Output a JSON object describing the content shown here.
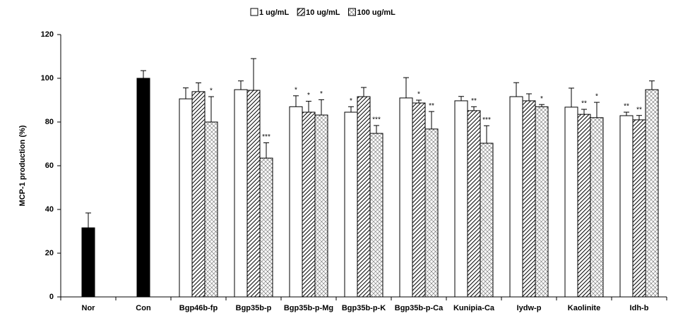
{
  "chart_data": {
    "type": "bar",
    "y_label": "MCP-1 production (%)",
    "categories": [
      "Nor",
      "Con",
      "Bgp46b-fp",
      "Bgp35b-p",
      "Bgp35b-p-Mg",
      "Bgp35b-p-K",
      "Bgp35b-p-Ca",
      "Kunipia-Ca",
      "Iydw-p",
      "Kaolinite",
      "Idh-b"
    ],
    "ylim": [
      0,
      120
    ],
    "yticks": [
      0,
      20,
      40,
      60,
      80,
      100,
      120
    ],
    "series": [
      {
        "color": "#000000",
        "hatch": "solid",
        "values": [
          31.6,
          100,
          null,
          null,
          null,
          null,
          null,
          null,
          null,
          null,
          null
        ],
        "errors": [
          6.8,
          3.5,
          null,
          null,
          null,
          null,
          null,
          null,
          null,
          null,
          null
        ],
        "significance": [
          null,
          null,
          null,
          null,
          null,
          null,
          null,
          null,
          null,
          null,
          null
        ]
      },
      {
        "name": "1 ug/mL",
        "color": "#ffffff",
        "hatch": "solid",
        "values": [
          null,
          null,
          90.6,
          94.8,
          87,
          84.5,
          91,
          89.7,
          91.6,
          86.8,
          82.9
        ],
        "errors": [
          null,
          null,
          5,
          4,
          5,
          2.5,
          9.3,
          2,
          6.4,
          8.7,
          1.6
        ],
        "significance": [
          null,
          null,
          null,
          null,
          "*",
          "*",
          null,
          null,
          null,
          null,
          "**"
        ]
      },
      {
        "name": "10 ug/mL",
        "color": "#000000",
        "hatch": "diagonal",
        "values": [
          null,
          null,
          93.9,
          94.5,
          84.5,
          91.6,
          88.7,
          85.2,
          89.7,
          83.5,
          81
        ],
        "errors": [
          null,
          null,
          4,
          14.5,
          5,
          4.2,
          1.3,
          1.8,
          3.2,
          2.3,
          2
        ],
        "significance": [
          null,
          null,
          null,
          null,
          "*",
          null,
          "*",
          "**",
          null,
          "**",
          "**"
        ]
      },
      {
        "name": "100 ug/mL",
        "color": "#000000",
        "hatch": "crosshatch",
        "values": [
          null,
          null,
          80,
          63.5,
          83.2,
          74.8,
          76.8,
          70.3,
          87,
          82,
          94.8
        ],
        "errors": [
          null,
          null,
          11.6,
          7,
          7,
          3.6,
          8,
          8,
          1,
          7,
          4
        ],
        "significance": [
          null,
          null,
          "*",
          "***",
          "*",
          "***",
          "**",
          "***",
          "*",
          "*",
          null
        ]
      }
    ]
  }
}
